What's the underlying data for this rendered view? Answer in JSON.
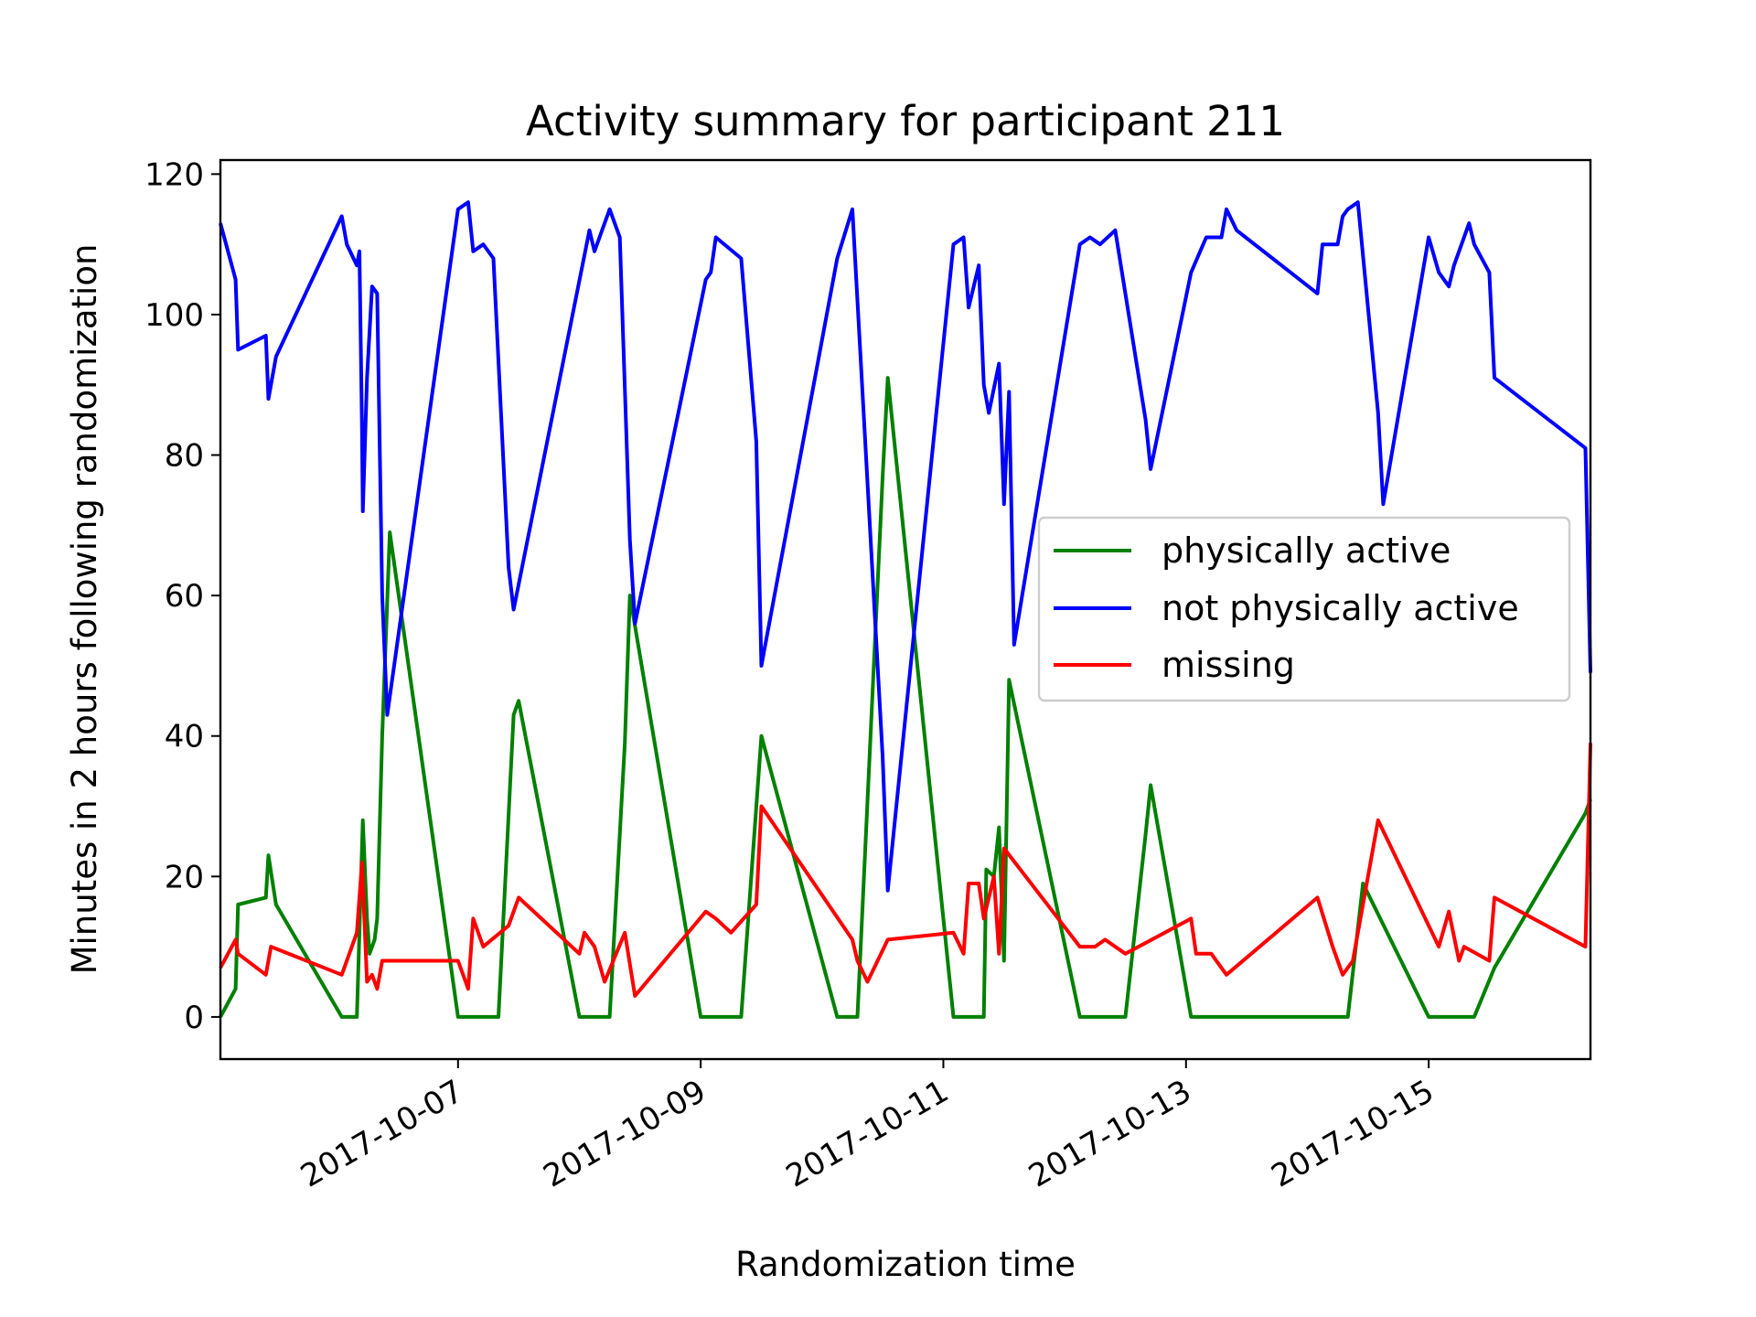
{
  "chart_data": {
    "type": "line",
    "title": "Activity summary for participant 211",
    "xlabel": "Randomization time",
    "ylabel": "Minutes in 2 hours following randomization",
    "ylim": [
      -6,
      122
    ],
    "yticks": [
      0,
      20,
      40,
      60,
      80,
      100,
      120
    ],
    "xlim": [
      "2017-10-05 01:00",
      "2017-10-16 08:00"
    ],
    "xticks": [
      {
        "date": "2017-10-07 00:00",
        "label": "2017-10-07"
      },
      {
        "date": "2017-10-09 00:00",
        "label": "2017-10-09"
      },
      {
        "date": "2017-10-11 00:00",
        "label": "2017-10-11"
      },
      {
        "date": "2017-10-13 00:00",
        "label": "2017-10-13"
      },
      {
        "date": "2017-10-15 00:00",
        "label": "2017-10-15"
      }
    ],
    "grid": false,
    "legend_position": "center-right",
    "series": [
      {
        "name": "physically active",
        "color": "#008000",
        "points": [
          [
            "2017-10-05 01:00",
            0
          ],
          [
            "2017-10-05 04:00",
            4
          ],
          [
            "2017-10-05 04:30",
            16
          ],
          [
            "2017-10-05 10:00",
            17
          ],
          [
            "2017-10-05 10:30",
            23
          ],
          [
            "2017-10-05 12:00",
            16
          ],
          [
            "2017-10-06 01:00",
            0
          ],
          [
            "2017-10-06 04:00",
            0
          ],
          [
            "2017-10-06 05:10",
            28
          ],
          [
            "2017-10-06 06:00",
            14
          ],
          [
            "2017-10-06 06:30",
            9
          ],
          [
            "2017-10-06 07:30",
            11
          ],
          [
            "2017-10-06 08:00",
            14
          ],
          [
            "2017-10-06 09:00",
            40
          ],
          [
            "2017-10-06 10:30",
            69
          ],
          [
            "2017-10-07 00:00",
            0
          ],
          [
            "2017-10-07 08:00",
            0
          ],
          [
            "2017-10-07 11:00",
            43
          ],
          [
            "2017-10-07 12:00",
            45
          ],
          [
            "2017-10-08 00:00",
            0
          ],
          [
            "2017-10-08 06:00",
            0
          ],
          [
            "2017-10-08 09:00",
            39
          ],
          [
            "2017-10-08 10:00",
            60
          ],
          [
            "2017-10-09 00:00",
            0
          ],
          [
            "2017-10-09 08:00",
            0
          ],
          [
            "2017-10-09 12:00",
            40
          ],
          [
            "2017-10-10 03:00",
            0
          ],
          [
            "2017-10-10 07:00",
            0
          ],
          [
            "2017-10-10 12:00",
            77
          ],
          [
            "2017-10-10 13:00",
            91
          ],
          [
            "2017-10-11 02:00",
            0
          ],
          [
            "2017-10-11 08:00",
            0
          ],
          [
            "2017-10-11 08:30",
            21
          ],
          [
            "2017-10-11 10:00",
            20
          ],
          [
            "2017-10-11 11:00",
            27
          ],
          [
            "2017-10-11 12:00",
            8
          ],
          [
            "2017-10-11 13:00",
            48
          ],
          [
            "2017-10-12 03:00",
            0
          ],
          [
            "2017-10-12 12:00",
            0
          ],
          [
            "2017-10-12 16:00",
            26
          ],
          [
            "2017-10-12 17:00",
            33
          ],
          [
            "2017-10-13 01:00",
            0
          ],
          [
            "2017-10-14 08:00",
            0
          ],
          [
            "2017-10-14 11:00",
            19
          ],
          [
            "2017-10-15 00:00",
            0
          ],
          [
            "2017-10-15 09:00",
            0
          ],
          [
            "2017-10-15 13:00",
            7
          ],
          [
            "2017-10-16 07:00",
            29
          ],
          [
            "2017-10-16 08:00",
            31
          ]
        ]
      },
      {
        "name": "not physically active",
        "color": "#0000ff",
        "points": [
          [
            "2017-10-05 01:00",
            113
          ],
          [
            "2017-10-05 04:00",
            105
          ],
          [
            "2017-10-05 04:30",
            95
          ],
          [
            "2017-10-05 10:00",
            97
          ],
          [
            "2017-10-05 10:30",
            88
          ],
          [
            "2017-10-05 12:00",
            94
          ],
          [
            "2017-10-06 01:00",
            114
          ],
          [
            "2017-10-06 02:00",
            110
          ],
          [
            "2017-10-06 04:00",
            107
          ],
          [
            "2017-10-06 04:30",
            109
          ],
          [
            "2017-10-06 05:00",
            84
          ],
          [
            "2017-10-06 05:10",
            72
          ],
          [
            "2017-10-06 06:00",
            91
          ],
          [
            "2017-10-06 07:00",
            104
          ],
          [
            "2017-10-06 08:00",
            103
          ],
          [
            "2017-10-06 09:00",
            60
          ],
          [
            "2017-10-06 10:00",
            43
          ],
          [
            "2017-10-07 00:00",
            115
          ],
          [
            "2017-10-07 02:00",
            116
          ],
          [
            "2017-10-07 03:00",
            109
          ],
          [
            "2017-10-07 05:00",
            110
          ],
          [
            "2017-10-07 07:00",
            108
          ],
          [
            "2017-10-07 10:00",
            64
          ],
          [
            "2017-10-07 11:00",
            58
          ],
          [
            "2017-10-08 02:00",
            112
          ],
          [
            "2017-10-08 03:00",
            109
          ],
          [
            "2017-10-08 06:00",
            115
          ],
          [
            "2017-10-08 08:00",
            111
          ],
          [
            "2017-10-08 10:00",
            68
          ],
          [
            "2017-10-08 11:00",
            56
          ],
          [
            "2017-10-09 01:00",
            105
          ],
          [
            "2017-10-09 02:00",
            106
          ],
          [
            "2017-10-09 03:00",
            111
          ],
          [
            "2017-10-09 08:00",
            108
          ],
          [
            "2017-10-09 11:00",
            82
          ],
          [
            "2017-10-09 12:00",
            50
          ],
          [
            "2017-10-10 03:00",
            108
          ],
          [
            "2017-10-10 06:00",
            115
          ],
          [
            "2017-10-10 12:00",
            37
          ],
          [
            "2017-10-10 13:00",
            18
          ],
          [
            "2017-10-11 02:00",
            110
          ],
          [
            "2017-10-11 04:00",
            111
          ],
          [
            "2017-10-11 05:00",
            101
          ],
          [
            "2017-10-11 07:00",
            107
          ],
          [
            "2017-10-11 08:00",
            90
          ],
          [
            "2017-10-11 09:00",
            86
          ],
          [
            "2017-10-11 11:00",
            93
          ],
          [
            "2017-10-11 12:00",
            73
          ],
          [
            "2017-10-11 13:00",
            89
          ],
          [
            "2017-10-11 14:00",
            53
          ],
          [
            "2017-10-12 03:00",
            110
          ],
          [
            "2017-10-12 05:00",
            111
          ],
          [
            "2017-10-12 07:00",
            110
          ],
          [
            "2017-10-12 10:00",
            112
          ],
          [
            "2017-10-12 16:00",
            85
          ],
          [
            "2017-10-12 17:00",
            78
          ],
          [
            "2017-10-13 01:00",
            106
          ],
          [
            "2017-10-13 04:00",
            111
          ],
          [
            "2017-10-13 07:00",
            111
          ],
          [
            "2017-10-13 08:00",
            115
          ],
          [
            "2017-10-13 10:00",
            112
          ],
          [
            "2017-10-14 02:00",
            103
          ],
          [
            "2017-10-14 03:00",
            110
          ],
          [
            "2017-10-14 06:00",
            110
          ],
          [
            "2017-10-14 07:00",
            114
          ],
          [
            "2017-10-14 08:00",
            115
          ],
          [
            "2017-10-14 10:00",
            116
          ],
          [
            "2017-10-14 14:00",
            86
          ],
          [
            "2017-10-14 15:00",
            73
          ],
          [
            "2017-10-15 00:00",
            111
          ],
          [
            "2017-10-15 02:00",
            106
          ],
          [
            "2017-10-15 04:00",
            104
          ],
          [
            "2017-10-15 05:00",
            107
          ],
          [
            "2017-10-15 08:00",
            113
          ],
          [
            "2017-10-15 09:00",
            110
          ],
          [
            "2017-10-15 12:00",
            106
          ],
          [
            "2017-10-15 13:00",
            91
          ],
          [
            "2017-10-16 07:00",
            81
          ],
          [
            "2017-10-16 08:00",
            49
          ]
        ]
      },
      {
        "name": "missing",
        "color": "#ff0000",
        "points": [
          [
            "2017-10-05 01:00",
            7
          ],
          [
            "2017-10-05 04:00",
            11
          ],
          [
            "2017-10-05 04:30",
            9
          ],
          [
            "2017-10-05 10:00",
            6
          ],
          [
            "2017-10-05 11:00",
            10
          ],
          [
            "2017-10-06 01:00",
            6
          ],
          [
            "2017-10-06 04:00",
            12
          ],
          [
            "2017-10-06 05:00",
            22
          ],
          [
            "2017-10-06 06:00",
            5
          ],
          [
            "2017-10-06 07:00",
            6
          ],
          [
            "2017-10-06 08:00",
            4
          ],
          [
            "2017-10-06 09:00",
            8
          ],
          [
            "2017-10-07 00:00",
            8
          ],
          [
            "2017-10-07 02:00",
            4
          ],
          [
            "2017-10-07 03:00",
            14
          ],
          [
            "2017-10-07 05:00",
            10
          ],
          [
            "2017-10-07 10:00",
            13
          ],
          [
            "2017-10-07 12:00",
            17
          ],
          [
            "2017-10-08 00:00",
            9
          ],
          [
            "2017-10-08 01:00",
            12
          ],
          [
            "2017-10-08 03:00",
            10
          ],
          [
            "2017-10-08 05:00",
            5
          ],
          [
            "2017-10-08 09:00",
            12
          ],
          [
            "2017-10-08 11:00",
            3
          ],
          [
            "2017-10-09 01:00",
            15
          ],
          [
            "2017-10-09 03:00",
            14
          ],
          [
            "2017-10-09 06:00",
            12
          ],
          [
            "2017-10-09 11:00",
            16
          ],
          [
            "2017-10-09 12:00",
            30
          ],
          [
            "2017-10-10 06:00",
            11
          ],
          [
            "2017-10-10 07:00",
            8
          ],
          [
            "2017-10-10 09:00",
            5
          ],
          [
            "2017-10-10 13:00",
            11
          ],
          [
            "2017-10-11 02:00",
            12
          ],
          [
            "2017-10-11 04:00",
            9
          ],
          [
            "2017-10-11 05:00",
            19
          ],
          [
            "2017-10-11 07:00",
            19
          ],
          [
            "2017-10-11 08:00",
            14
          ],
          [
            "2017-10-11 10:00",
            20
          ],
          [
            "2017-10-11 11:00",
            9
          ],
          [
            "2017-10-11 12:00",
            24
          ],
          [
            "2017-10-12 03:00",
            10
          ],
          [
            "2017-10-12 06:00",
            10
          ],
          [
            "2017-10-12 08:00",
            11
          ],
          [
            "2017-10-12 12:00",
            9
          ],
          [
            "2017-10-13 01:00",
            14
          ],
          [
            "2017-10-13 02:00",
            9
          ],
          [
            "2017-10-13 05:00",
            9
          ],
          [
            "2017-10-13 08:00",
            6
          ],
          [
            "2017-10-14 02:00",
            17
          ],
          [
            "2017-10-14 05:00",
            10
          ],
          [
            "2017-10-14 07:00",
            6
          ],
          [
            "2017-10-14 09:00",
            8
          ],
          [
            "2017-10-14 14:00",
            28
          ],
          [
            "2017-10-15 02:00",
            10
          ],
          [
            "2017-10-15 04:00",
            15
          ],
          [
            "2017-10-15 06:00",
            8
          ],
          [
            "2017-10-15 07:00",
            10
          ],
          [
            "2017-10-15 12:00",
            8
          ],
          [
            "2017-10-15 13:00",
            17
          ],
          [
            "2017-10-16 07:00",
            10
          ],
          [
            "2017-10-16 08:00",
            39
          ]
        ]
      }
    ]
  }
}
